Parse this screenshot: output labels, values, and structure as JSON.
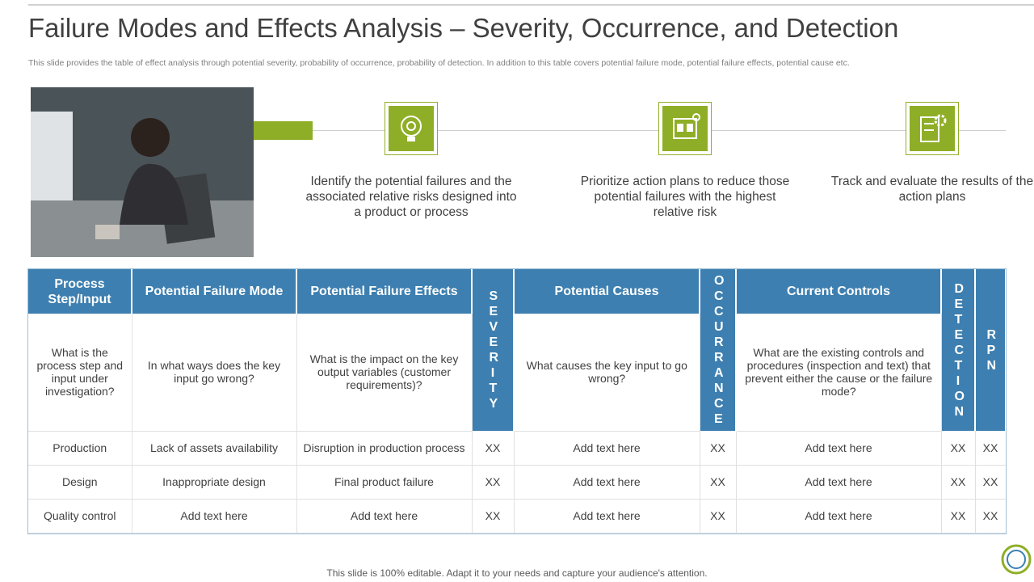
{
  "title": "Failure Modes and Effects Analysis – Severity, Occurrence, and Detection",
  "subtitle": "This slide provides the table of effect analysis through potential severity, probability of occurrence, probability of detection. In addition to this table covers potential failure mode, potential failure effects, potential cause etc.",
  "steps": [
    "Identify the potential failures and the associated relative risks designed into a product or process",
    "Prioritize action plans to reduce those potential failures with the highest relative risk",
    "Track and evaluate the results of the action plans"
  ],
  "table": {
    "headers": [
      "Process Step/Input",
      "Potential Failure Mode",
      "Potential Failure Effects",
      "SEVERITY",
      "Potential Causes",
      "OCCURRANCE",
      "Current Controls",
      "DETECTION",
      "RPN"
    ],
    "description": [
      "What is the process step and input under investigation?",
      "In what ways does the key input go wrong?",
      "What is the impact on the key output variables (customer requirements)?",
      "What causes the key input to go wrong?",
      "What are the existing controls and procedures (inspection and text) that prevent either the cause or the failure mode?"
    ],
    "rows": [
      [
        "Production",
        "Lack of assets availability",
        "Disruption in production process",
        "XX",
        "Add text here",
        "XX",
        "Add text here",
        "XX",
        "XX"
      ],
      [
        "Design",
        "Inappropriate design",
        "Final product failure",
        "XX",
        "Add text here",
        "XX",
        "Add text here",
        "XX",
        "XX"
      ],
      [
        "Quality control",
        "Add text here",
        "Add text here",
        "XX",
        "Add text here",
        "XX",
        "Add text here",
        "XX",
        "XX"
      ]
    ]
  },
  "footer": "This slide is 100% editable. Adapt it to your needs and capture your audience's attention."
}
